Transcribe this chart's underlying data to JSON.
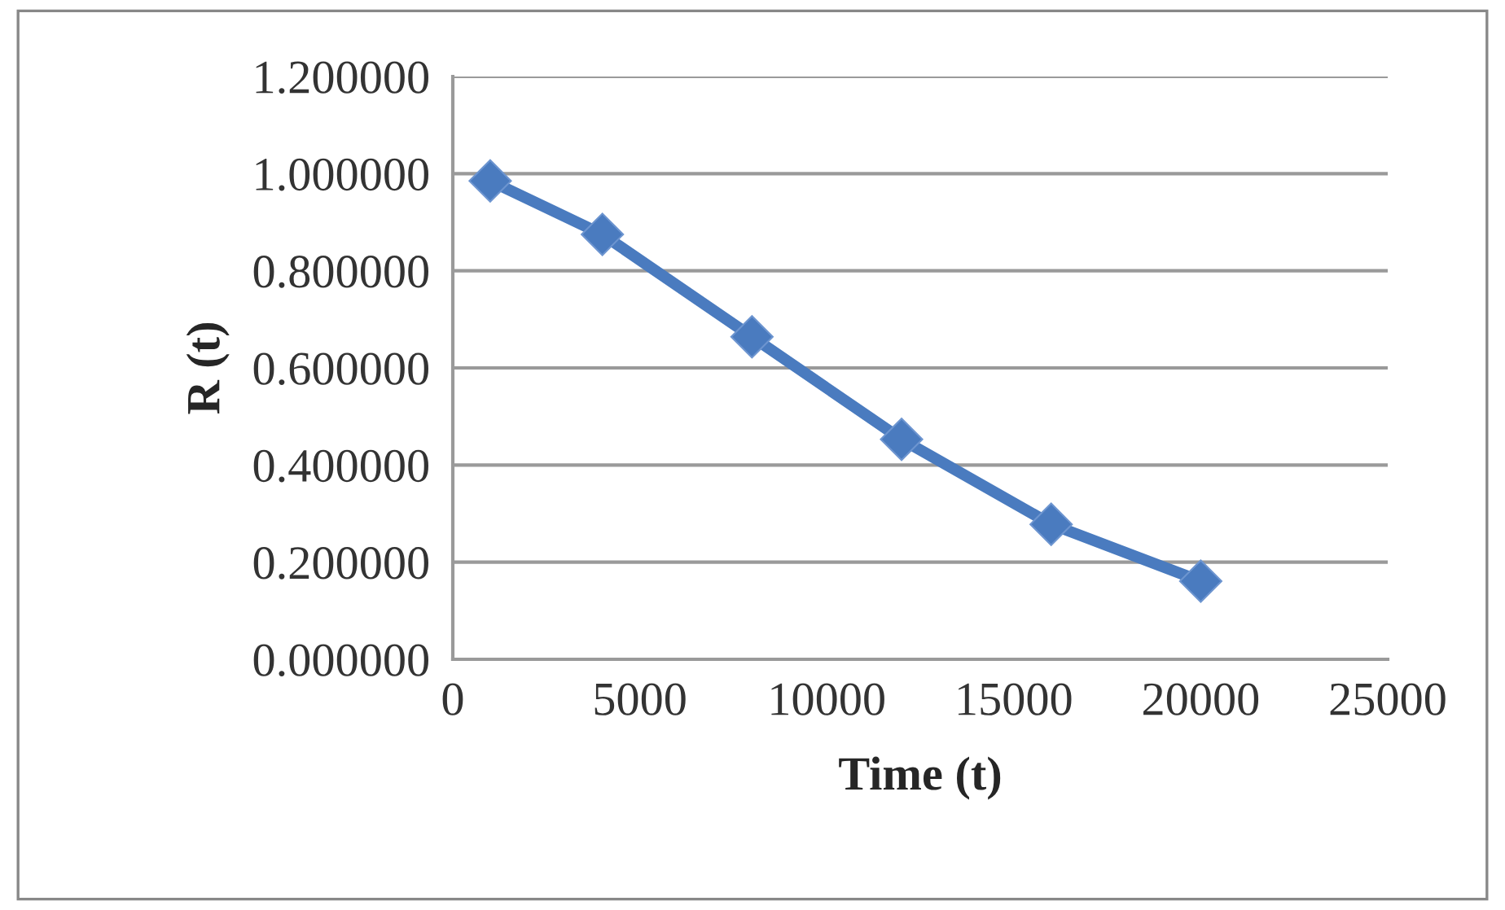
{
  "chart_data": {
    "type": "line",
    "xlabel": "Time (t)",
    "ylabel": "R (t)",
    "x": [
      1000,
      4000,
      8000,
      12000,
      16000,
      20000
    ],
    "series": [
      {
        "color": "#4a7bbf",
        "values": [
          0.985,
          0.875,
          0.664,
          0.453,
          0.278,
          0.161
        ]
      }
    ],
    "xlim": [
      0,
      25000
    ],
    "xticks": [
      0,
      5000,
      10000,
      15000,
      20000,
      25000
    ],
    "ylim": [
      0,
      1.2
    ],
    "yticks": [
      {
        "value": 0,
        "label": "0.000000"
      },
      {
        "value": 0.2,
        "label": "0.200000"
      },
      {
        "value": 0.4,
        "label": "0.400000"
      },
      {
        "value": 0.6,
        "label": "0.600000"
      },
      {
        "value": 0.8,
        "label": "0.800000"
      },
      {
        "value": 1.0,
        "label": "1.000000"
      },
      {
        "value": 1.2,
        "label": "1.200000"
      }
    ],
    "grid": "y",
    "marker": "diamond",
    "line_style": "solid",
    "legend": false
  }
}
